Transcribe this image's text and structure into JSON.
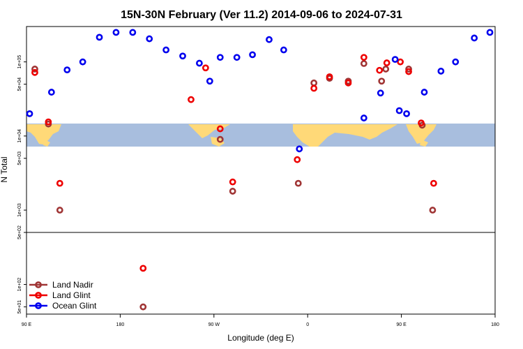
{
  "chart_data": {
    "type": "scatter",
    "title": "15N-30N February (Ver 11.2)   2014-09-06 to 2024-07-31",
    "xlabel": "Longitude (deg E)",
    "ylabel": "N Total",
    "x_scale": "longitude, 90E to 180 wrapping through 90W and 0 to 90E and 180",
    "x_ticks": [
      {
        "lon": 90,
        "label": "90 E"
      },
      {
        "lon": 180,
        "label": "180"
      },
      {
        "lon": 270,
        "label": "90 W"
      },
      {
        "lon": 360,
        "label": "0"
      },
      {
        "lon": 450,
        "label": "90 E"
      },
      {
        "lon": 540,
        "label": "180"
      }
    ],
    "xlim": [
      90,
      540
    ],
    "upper_panel": {
      "scale": "log",
      "ylim": [
        500,
        300000
      ],
      "y_ticks": [
        {
          "value": 1000,
          "label": "1e+03"
        },
        {
          "value": 5000,
          "label": "5e+03"
        },
        {
          "value": 10000,
          "label": "1e+04"
        },
        {
          "value": 50000,
          "label": "5e+04"
        },
        {
          "value": 100000,
          "label": "1e+05"
        }
      ]
    },
    "lower_panel": {
      "scale": "log",
      "ylim": [
        40,
        500
      ],
      "y_ticks": [
        {
          "value": 50,
          "label": "5e+01"
        },
        {
          "value": 100,
          "label": "1e+02"
        },
        {
          "value": 500,
          "label": "5e+02"
        }
      ]
    },
    "map_strip": {
      "land_color": "#ffd978",
      "ocean_color": "#a8bede"
    },
    "legend": {
      "position": "bottom-left"
    },
    "series": [
      {
        "name": "Land Nadir",
        "color": "#a03535",
        "points": [
          [
            98,
            80000
          ],
          [
            111,
            14500
          ],
          [
            122,
            1000
          ],
          [
            276,
            9000
          ],
          [
            288,
            1800
          ],
          [
            351,
            2300
          ],
          [
            366,
            52000
          ],
          [
            381,
            60000
          ],
          [
            399,
            55000
          ],
          [
            414,
            95000
          ],
          [
            431,
            55000
          ],
          [
            435,
            80000
          ],
          [
            457,
            80000
          ],
          [
            470,
            14000
          ],
          [
            480,
            1000
          ],
          [
            202,
            50
          ]
        ]
      },
      {
        "name": "Land Glint",
        "color": "#ee0000",
        "points": [
          [
            98,
            72000
          ],
          [
            111,
            15500
          ],
          [
            122,
            2300
          ],
          [
            248,
            31000
          ],
          [
            262,
            83000
          ],
          [
            276,
            12500
          ],
          [
            288,
            2400
          ],
          [
            350,
            4800
          ],
          [
            366,
            44000
          ],
          [
            381,
            63000
          ],
          [
            399,
            52000
          ],
          [
            414,
            115000
          ],
          [
            429,
            77000
          ],
          [
            436,
            97000
          ],
          [
            449,
            100000
          ],
          [
            457,
            74000
          ],
          [
            469,
            15000
          ],
          [
            481,
            2300
          ],
          [
            202,
            165
          ]
        ]
      },
      {
        "name": "Ocean Glint",
        "color": "#0000ee",
        "points": [
          [
            93,
            20000
          ],
          [
            114,
            39000
          ],
          [
            129,
            78000
          ],
          [
            144,
            100000
          ],
          [
            160,
            215000
          ],
          [
            176,
            250000
          ],
          [
            192,
            250000
          ],
          [
            208,
            205000
          ],
          [
            224,
            145000
          ],
          [
            240,
            120000
          ],
          [
            256,
            96000
          ],
          [
            266,
            55000
          ],
          [
            276,
            115000
          ],
          [
            292,
            115000
          ],
          [
            307,
            125000
          ],
          [
            323,
            200000
          ],
          [
            337,
            145000
          ],
          [
            352,
            6700
          ],
          [
            414,
            17500
          ],
          [
            430,
            38000
          ],
          [
            444,
            108000
          ],
          [
            448,
            22000
          ],
          [
            455,
            20000
          ],
          [
            472,
            39000
          ],
          [
            488,
            75000
          ],
          [
            502,
            100000
          ],
          [
            520,
            210000
          ],
          [
            535,
            250000
          ]
        ]
      }
    ]
  }
}
